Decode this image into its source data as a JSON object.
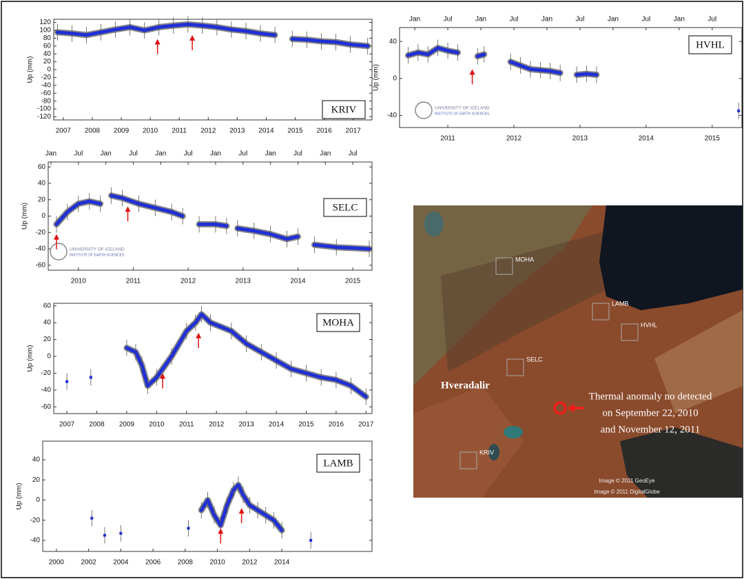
{
  "chart_data": [
    {
      "type": "line",
      "label": "KRIV",
      "ylabel": "Up (mm)",
      "color": "#1f2fd6",
      "x": [
        2006.8,
        2007.3,
        2007.8,
        2008.3,
        2008.8,
        2009.3,
        2009.8,
        2010.3,
        2010.8,
        2011.3,
        2011.8,
        2012.3,
        2012.8,
        2013.3,
        2013.8,
        2014.3,
        2014.6,
        2014.9,
        2015.4,
        2015.9,
        2016.4,
        2016.9,
        2017.5
      ],
      "values": [
        95,
        92,
        88,
        95,
        102,
        108,
        100,
        108,
        112,
        115,
        112,
        108,
        102,
        98,
        92,
        88,
        null,
        78,
        76,
        72,
        70,
        64,
        60
      ],
      "arrows": [
        {
          "x": 2010.25,
          "y": 78
        },
        {
          "x": 2011.45,
          "y": 88
        }
      ],
      "xlim": [
        2006.67,
        2017.65
      ],
      "xticks": [
        2007,
        2008,
        2009,
        2010,
        2011,
        2012,
        2013,
        2014,
        2015,
        2016,
        2017
      ],
      "ylim": [
        -128,
        128
      ],
      "yticks": [
        120,
        100,
        80,
        60,
        40,
        20,
        0,
        -20,
        -40,
        -60,
        -80,
        -100,
        -120
      ]
    },
    {
      "type": "line",
      "label": "HVHL",
      "ylabel": "Up (mm)",
      "color": "#1f2fd6",
      "x": [
        2010.9,
        2011.05,
        2011.2,
        2011.35,
        2011.5,
        2011.65,
        2011.8,
        2011.95,
        2012.05,
        2012.2,
        2012.45,
        2012.6,
        2012.75,
        2012.9,
        2013.05,
        2013.2,
        2013.3,
        2013.45,
        2013.6,
        2013.75,
        2014.5,
        2015.9
      ],
      "values": [
        25,
        28,
        26,
        33,
        30,
        28,
        null,
        24,
        26,
        null,
        18,
        14,
        10,
        9,
        8,
        6,
        null,
        4,
        5,
        4,
        null,
        -35
      ],
      "arrows": [
        {
          "x": 2011.87,
          "y": 10
        }
      ],
      "logo_text": [
        "UNIVERSITY OF ICELAND",
        "INSTITUTE OF EARTH SCIENCES"
      ],
      "xlim": [
        2010.77,
        2015.95
      ],
      "xticks": [
        {
          "value": 2011.5,
          "label": "2011"
        },
        {
          "value": 2012.5,
          "label": "2012"
        },
        {
          "value": 2013.5,
          "label": "2013"
        },
        {
          "value": 2014.5,
          "label": "2014"
        },
        {
          "value": 2015.5,
          "label": "2015"
        }
      ],
      "top_ticks": [
        {
          "value": 2011.0,
          "label": "Jan"
        },
        {
          "value": 2011.5,
          "label": "Jul"
        },
        {
          "value": 2012.0,
          "label": "Jan"
        },
        {
          "value": 2012.5,
          "label": "Jul"
        },
        {
          "value": 2013.0,
          "label": "Jan"
        },
        {
          "value": 2013.5,
          "label": "Jul"
        },
        {
          "value": 2014.0,
          "label": "Jan"
        },
        {
          "value": 2014.5,
          "label": "Jul"
        },
        {
          "value": 2015.0,
          "label": "Jan"
        },
        {
          "value": 2015.5,
          "label": "Jul"
        }
      ],
      "ylim": [
        -53,
        55
      ],
      "yticks": [
        40,
        0,
        -40
      ]
    },
    {
      "type": "line",
      "label": "SELC",
      "ylabel": "Up (mm)",
      "color": "#1f2fd6",
      "x": [
        2010.1,
        2010.3,
        2010.5,
        2010.7,
        2010.9,
        2011.0,
        2011.1,
        2011.3,
        2011.6,
        2011.9,
        2012.2,
        2012.4,
        2012.55,
        2012.7,
        2013.0,
        2013.2,
        2013.3,
        2013.4,
        2013.7,
        2014.0,
        2014.3,
        2014.5,
        2014.65,
        2014.8,
        2015.2,
        2015.8
      ],
      "values": [
        -10,
        5,
        15,
        18,
        15,
        null,
        25,
        22,
        15,
        10,
        5,
        0,
        null,
        -10,
        -10,
        -12,
        null,
        -15,
        -18,
        -22,
        -28,
        -25,
        null,
        -35,
        -38,
        -40
      ],
      "arrows": [
        {
          "x": 2010.1,
          "y": -22
        },
        {
          "x": 2011.4,
          "y": 12
        }
      ],
      "logo_text": [
        "UNIVERSITY OF ICELAND",
        "INSTITUTE OF EARTH SCIENCES"
      ],
      "xlim": [
        2009.95,
        2015.85
      ],
      "xticks": [
        {
          "value": 2010.5,
          "label": "2010"
        },
        {
          "value": 2011.5,
          "label": "2011"
        },
        {
          "value": 2012.5,
          "label": "2012"
        },
        {
          "value": 2013.5,
          "label": "2013"
        },
        {
          "value": 2014.5,
          "label": "2014"
        },
        {
          "value": 2015.5,
          "label": "2015"
        }
      ],
      "top_ticks": [
        {
          "value": 2010.0,
          "label": "Jan"
        },
        {
          "value": 2010.5,
          "label": "Jul"
        },
        {
          "value": 2011.0,
          "label": "Jan"
        },
        {
          "value": 2011.5,
          "label": "Jul"
        },
        {
          "value": 2012.0,
          "label": "Jan"
        },
        {
          "value": 2012.5,
          "label": "Jul"
        },
        {
          "value": 2013.0,
          "label": "Jan"
        },
        {
          "value": 2013.5,
          "label": "Jul"
        },
        {
          "value": 2014.0,
          "label": "Jan"
        },
        {
          "value": 2014.5,
          "label": "Jul"
        },
        {
          "value": 2015.0,
          "label": "Jan"
        },
        {
          "value": 2015.5,
          "label": "Jul"
        }
      ],
      "ylim": [
        -66,
        66
      ],
      "yticks": [
        60,
        40,
        20,
        0,
        -20,
        -40,
        -60
      ]
    },
    {
      "type": "line",
      "label": "MOHA",
      "ylabel": "Up (mm)",
      "color": "#1f2fd6",
      "x": [
        2007.0,
        2007.4,
        2007.8,
        2008.4,
        2009.0,
        2009.3,
        2009.5,
        2009.7,
        2010.0,
        2010.5,
        2011.0,
        2011.3,
        2011.5,
        2011.8,
        2012.5,
        2013.0,
        2013.5,
        2014.0,
        2014.5,
        2015.0,
        2015.5,
        2016.0,
        2016.5,
        2017.0
      ],
      "values": [
        -30,
        null,
        -25,
        null,
        10,
        5,
        -10,
        -35,
        -25,
        0,
        30,
        40,
        50,
        40,
        30,
        15,
        5,
        -5,
        -15,
        -20,
        -25,
        -28,
        -35,
        -48
      ],
      "arrows": [
        {
          "x": 2010.2,
          "y": -20
        },
        {
          "x": 2011.4,
          "y": 28
        }
      ],
      "xlim": [
        2006.56,
        2017.2
      ],
      "xticks": [
        2007,
        2008,
        2009,
        2010,
        2011,
        2012,
        2013,
        2014,
        2015,
        2016,
        2017
      ],
      "ylim": [
        -68,
        63
      ],
      "yticks": [
        60,
        40,
        20,
        0,
        -20,
        -40,
        -60
      ]
    },
    {
      "type": "line",
      "label": "LAMB",
      "ylabel": "Up (mm)",
      "color": "#1f2fd6",
      "x": [
        2002.2,
        2002.6,
        2003.0,
        2003.5,
        2004.0,
        2006.0,
        2008.2,
        2008.6,
        2009.0,
        2009.4,
        2009.8,
        2010.2,
        2010.6,
        2011.0,
        2011.3,
        2011.6,
        2012.0,
        2012.5,
        2013.0,
        2013.5,
        2014.0,
        2015.0,
        2015.8
      ],
      "values": [
        -18,
        null,
        -35,
        null,
        -33,
        null,
        -28,
        null,
        -10,
        0,
        -15,
        -25,
        -5,
        10,
        15,
        5,
        -5,
        -10,
        -15,
        -20,
        -30,
        null,
        -40
      ],
      "arrows": [
        {
          "x": 2010.2,
          "y": -28
        },
        {
          "x": 2011.5,
          "y": -8
        }
      ],
      "xlim": [
        1999.15,
        2019.6
      ],
      "xticks": [
        2000,
        2002,
        2004,
        2006,
        2008,
        2010,
        2012,
        2014
      ],
      "ylim": [
        -51,
        58.5
      ],
      "yticks": [
        40,
        20,
        0,
        -20,
        -40
      ]
    }
  ],
  "map": {
    "stations": [
      "MOHA",
      "LAMB",
      "HVHL",
      "SELC",
      "KRIV"
    ],
    "place": "Hveradalir",
    "annotation": [
      "Thermal anomaly no detected",
      "on September 22, 2010",
      "and November 12,  2011"
    ],
    "credits": [
      "Image © 2011 GeoEye",
      "Image © 2011 DigitalGlobe"
    ]
  }
}
